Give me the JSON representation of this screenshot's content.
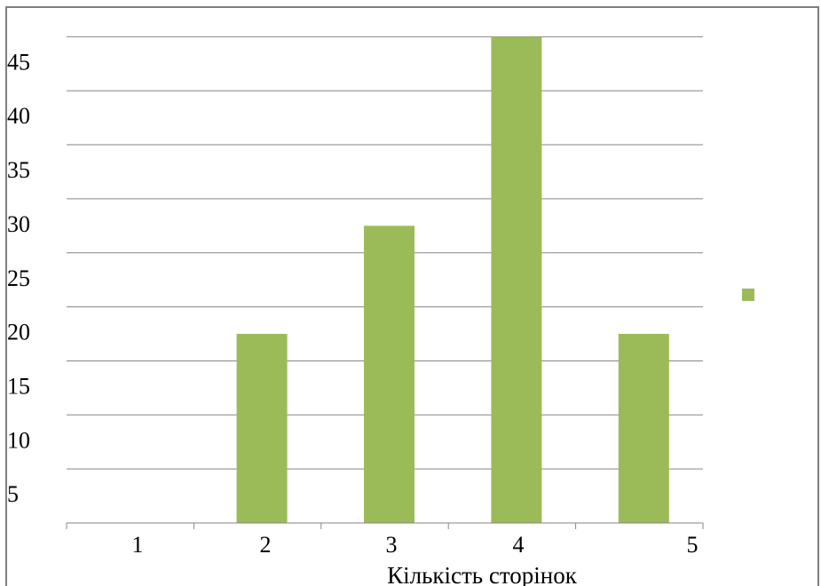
{
  "chart_data": {
    "type": "bar",
    "categories": [
      "1",
      "2",
      "3",
      "4",
      "5"
    ],
    "values": [
      0,
      17.5,
      27.5,
      45,
      17.5
    ],
    "xlabel": "Кількість сторінок",
    "ylabel": "",
    "y_ticks": [
      "5",
      "10",
      "15",
      "20",
      "25",
      "30",
      "35",
      "40",
      "45"
    ],
    "ylim": [
      0,
      50
    ],
    "grid": "horizontal",
    "legend": "right",
    "bar_color": "#9bbb59",
    "gridline_color": "#868686"
  }
}
